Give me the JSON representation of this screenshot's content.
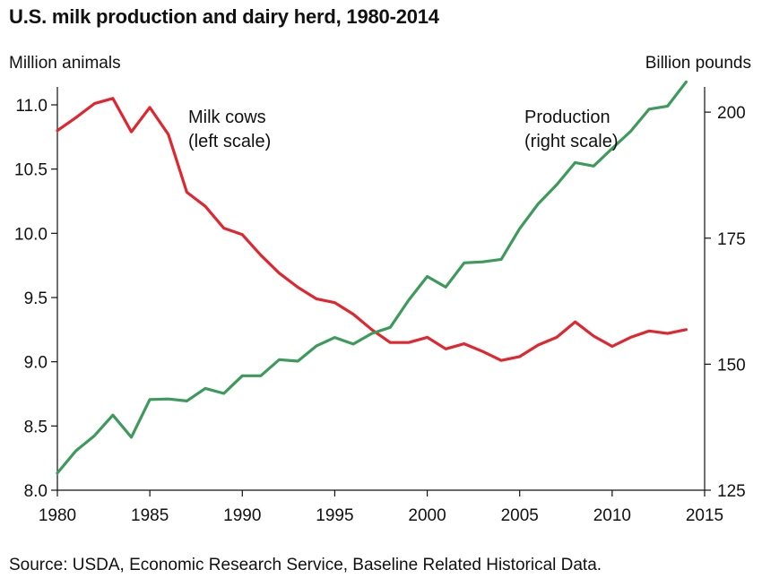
{
  "chart_data": {
    "type": "line",
    "title": "U.S. milk production and dairy herd, 1980-2014",
    "ylabel_left": "Million animals",
    "ylabel_right": "Billion pounds",
    "source": "Source: USDA, Economic Research Service, Baseline Related Historical Data.",
    "xlim": [
      1980,
      2015
    ],
    "ylim_left": [
      8.0,
      11.0
    ],
    "ylim_right": [
      125,
      205
    ],
    "x_ticks": [
      "1980",
      "1985",
      "1990",
      "1995",
      "2000",
      "2005",
      "2010",
      "2015"
    ],
    "y_ticks_left": [
      "8.0",
      "8.5",
      "9.0",
      "9.5",
      "10.0",
      "10.5",
      "11.0"
    ],
    "y_ticks_right": [
      "125",
      "150",
      "175",
      "200"
    ],
    "colors": {
      "milk_cows": "#e0262e",
      "production": "#3d9a5b"
    },
    "series": [
      {
        "label_lines": [
          "Milk cows",
          "(left scale)"
        ],
        "axis": "left",
        "x": [
          1980,
          1981,
          1982,
          1983,
          1984,
          1985,
          1986,
          1987,
          1988,
          1989,
          1990,
          1991,
          1992,
          1993,
          1994,
          1995,
          1996,
          1997,
          1998,
          1999,
          2000,
          2001,
          2002,
          2003,
          2004,
          2005,
          2006,
          2007,
          2008,
          2009,
          2010,
          2011,
          2012,
          2013,
          2014
        ],
        "values": [
          10.8,
          10.9,
          11.01,
          11.05,
          10.79,
          10.98,
          10.77,
          10.32,
          10.21,
          10.04,
          9.99,
          9.83,
          9.69,
          9.58,
          9.49,
          9.46,
          9.37,
          9.25,
          9.15,
          9.15,
          9.19,
          9.1,
          9.14,
          9.08,
          9.01,
          9.04,
          9.13,
          9.19,
          9.31,
          9.2,
          9.12,
          9.19,
          9.24,
          9.22,
          9.25
        ]
      },
      {
        "label_lines": [
          "Production",
          "(right scale)"
        ],
        "axis": "right",
        "x": [
          1980,
          1981,
          1982,
          1983,
          1984,
          1985,
          1986,
          1987,
          1988,
          1989,
          1990,
          1991,
          1992,
          1993,
          1994,
          1995,
          1996,
          1997,
          1998,
          1999,
          2000,
          2001,
          2002,
          2003,
          2004,
          2005,
          2006,
          2007,
          2008,
          2009,
          2010,
          2011,
          2012,
          2013,
          2014
        ],
        "values": [
          128.4,
          132.8,
          135.8,
          139.9,
          135.5,
          143.0,
          143.1,
          142.7,
          145.2,
          144.2,
          147.7,
          147.7,
          150.9,
          150.6,
          153.6,
          155.3,
          154.0,
          156.1,
          157.3,
          162.7,
          167.4,
          165.3,
          170.1,
          170.3,
          170.8,
          176.9,
          181.8,
          185.6,
          190.0,
          189.3,
          192.8,
          196.2,
          200.6,
          201.2,
          206.0
        ]
      }
    ]
  }
}
